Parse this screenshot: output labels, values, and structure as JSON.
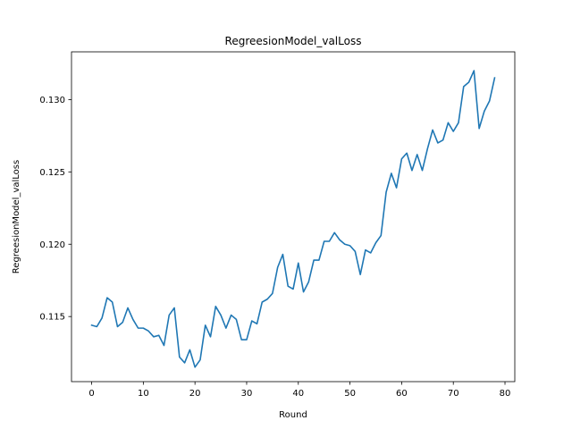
{
  "chart_data": {
    "type": "line",
    "title": "RegreesionModel_valLoss",
    "xlabel": "Round",
    "ylabel": "RegreesionModel_valLoss",
    "xlim": [
      -3.9,
      81.9
    ],
    "ylim": [
      0.1105,
      0.1333
    ],
    "xticks": [
      0,
      10,
      20,
      30,
      40,
      50,
      60,
      70,
      80
    ],
    "xtick_labels": [
      "0",
      "10",
      "20",
      "30",
      "40",
      "50",
      "60",
      "70",
      "80"
    ],
    "yticks": [
      0.115,
      0.12,
      0.125,
      0.13
    ],
    "ytick_labels": [
      "0.115",
      "0.120",
      "0.125",
      "0.130"
    ],
    "grid": false,
    "series": [
      {
        "color": "#1f77b4",
        "x": [
          0,
          1,
          2,
          3,
          4,
          5,
          6,
          7,
          8,
          9,
          10,
          11,
          12,
          13,
          14,
          15,
          16,
          17,
          18,
          19,
          20,
          21,
          22,
          23,
          24,
          25,
          26,
          27,
          28,
          29,
          30,
          31,
          32,
          33,
          34,
          35,
          36,
          37,
          38,
          39,
          40,
          41,
          42,
          43,
          44,
          45,
          46,
          47,
          48,
          49,
          50,
          51,
          52,
          53,
          54,
          55,
          56,
          57,
          58,
          59,
          60,
          61,
          62,
          63,
          64,
          65,
          66,
          67,
          68,
          69,
          70,
          71,
          72,
          73,
          74,
          75,
          76,
          77,
          78
        ],
        "y": [
          0.1144,
          0.1143,
          0.1149,
          0.1163,
          0.116,
          0.1143,
          0.1146,
          0.1156,
          0.1148,
          0.1142,
          0.1142,
          0.114,
          0.1136,
          0.1137,
          0.113,
          0.1151,
          0.1156,
          0.1122,
          0.1118,
          0.1127,
          0.1115,
          0.112,
          0.1144,
          0.1136,
          0.1157,
          0.1151,
          0.1142,
          0.1151,
          0.1148,
          0.1134,
          0.1134,
          0.1147,
          0.1145,
          0.116,
          0.1162,
          0.1166,
          0.1184,
          0.1193,
          0.1171,
          0.1169,
          0.1187,
          0.1167,
          0.1174,
          0.1189,
          0.1189,
          0.1202,
          0.1202,
          0.1208,
          0.1203,
          0.12,
          0.1199,
          0.1195,
          0.1179,
          0.1196,
          0.1194,
          0.1201,
          0.1206,
          0.1236,
          0.1249,
          0.1239,
          0.1259,
          0.1263,
          0.1251,
          0.1262,
          0.1251,
          0.1266,
          0.1279,
          0.127,
          0.1272,
          0.1284,
          0.1278,
          0.1284,
          0.1309,
          0.1312,
          0.132,
          0.128,
          0.1292,
          0.1299,
          0.1315
        ]
      }
    ]
  }
}
